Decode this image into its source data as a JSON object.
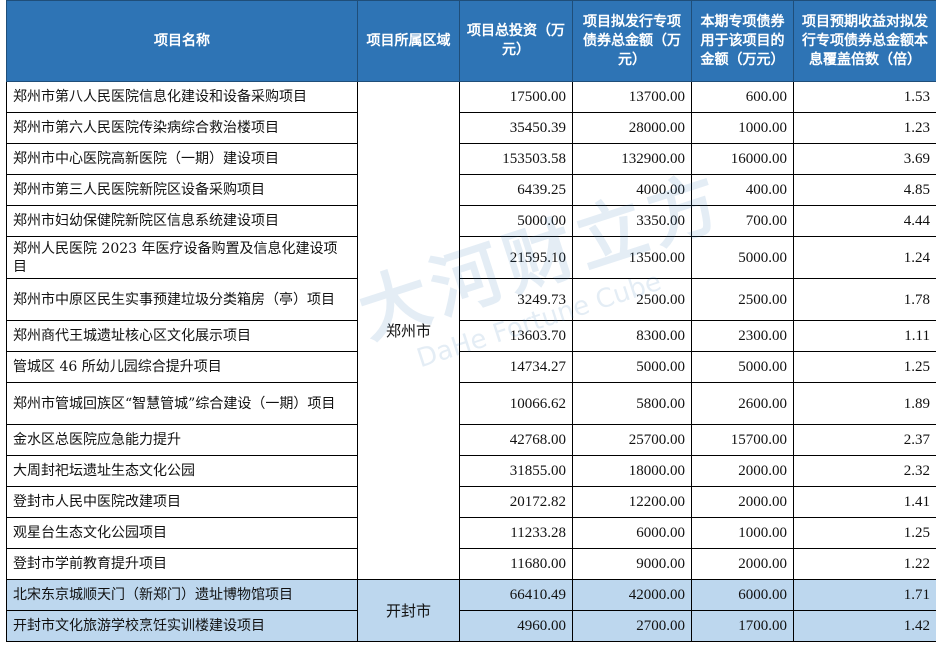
{
  "headers": [
    "项目名称",
    "项目所属区域",
    "项目总投资（万元）",
    "项目拟发行专项债券总金额（万元）",
    "本期专项债券用于该项目的金额（万元）",
    "项目预期收益对拟发行专项债券总金额本息覆盖倍数（倍）"
  ],
  "watermark": {
    "cn": "大河财立方",
    "en": "DaHe Fortune Cube"
  },
  "colors": {
    "header_bg": "#2e74b5",
    "kaifeng_row_bg": "#bdd7ee"
  },
  "groups": [
    {
      "region": "郑州市",
      "rows": [
        [
          "郑州市第八人民医院信息化建设和设备采购项目",
          "17500.00",
          "13700.00",
          "600.00",
          "1.53"
        ],
        [
          "郑州市第六人民医院传染病综合救治楼项目",
          "35450.39",
          "28000.00",
          "1000.00",
          "1.23"
        ],
        [
          "郑州市中心医院高新医院（一期）建设项目",
          "153503.58",
          "132900.00",
          "16000.00",
          "3.69"
        ],
        [
          "郑州市第三人民医院新院区设备采购项目",
          "6439.25",
          "4000.00",
          "400.00",
          "4.85"
        ],
        [
          "郑州市妇幼保健院新院区信息系统建设项目",
          "5000.00",
          "3350.00",
          "700.00",
          "4.44"
        ],
        [
          "郑州人民医院 2023 年医疗设备购置及信息化建设项目",
          "21595.10",
          "13500.00",
          "5000.00",
          "1.24"
        ],
        [
          "郑州市中原区民生实事预建垃圾分类箱房（亭）项目",
          "3249.73",
          "2500.00",
          "2500.00",
          "1.78"
        ],
        [
          "郑州商代王城遗址核心区文化展示项目",
          "13603.70",
          "8300.00",
          "2300.00",
          "1.11"
        ],
        [
          "管城区 46 所幼儿园综合提升项目",
          "14734.27",
          "5000.00",
          "5000.00",
          "1.25"
        ],
        [
          "郑州市管城回族区“智慧管城”综合建设（一期）项目",
          "10066.62",
          "5800.00",
          "2600.00",
          "1.89"
        ],
        [
          "金水区总医院应急能力提升",
          "42768.00",
          "25700.00",
          "15700.00",
          "2.37"
        ],
        [
          "大周封祀坛遗址生态文化公园",
          "31855.00",
          "18000.00",
          "2000.00",
          "2.32"
        ],
        [
          "登封市人民中医院改建项目",
          "20172.82",
          "12200.00",
          "2000.00",
          "1.41"
        ],
        [
          "观星台生态文化公园项目",
          "11233.28",
          "6000.00",
          "1000.00",
          "1.25"
        ],
        [
          "登封市学前教育提升项目",
          "11680.00",
          "9000.00",
          "2000.00",
          "1.22"
        ]
      ]
    },
    {
      "region": "开封市",
      "rows": [
        [
          "北宋东京城顺天门（新郑门）遗址博物馆项目",
          "66410.49",
          "42000.00",
          "6000.00",
          "1.71"
        ],
        [
          "开封市文化旅游学校烹饪实训楼建设项目",
          "4960.00",
          "2700.00",
          "1700.00",
          "1.42"
        ]
      ]
    }
  ]
}
